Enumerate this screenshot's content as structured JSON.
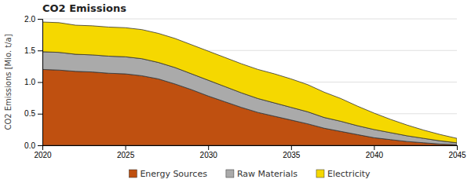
{
  "chart_data": {
    "type": "area",
    "stacked": true,
    "title": "CO2 Emissions",
    "ylabel": "CO2 Emissions [Mio. t/a]",
    "x": [
      2020,
      2021,
      2022,
      2023,
      2024,
      2025,
      2026,
      2027,
      2028,
      2029,
      2030,
      2031,
      2032,
      2033,
      2034,
      2035,
      2036,
      2037,
      2038,
      2039,
      2040,
      2041,
      2042,
      2043,
      2044,
      2045
    ],
    "series": [
      {
        "name": "Energy Sources",
        "color": "#bf5010",
        "values": [
          1.2,
          1.19,
          1.17,
          1.16,
          1.14,
          1.13,
          1.1,
          1.05,
          0.97,
          0.88,
          0.78,
          0.69,
          0.6,
          0.52,
          0.46,
          0.4,
          0.34,
          0.27,
          0.22,
          0.17,
          0.12,
          0.09,
          0.06,
          0.04,
          0.02,
          0.01
        ]
      },
      {
        "name": "Raw Materials",
        "color": "#aaaaaa",
        "values": [
          0.28,
          0.28,
          0.27,
          0.27,
          0.27,
          0.27,
          0.27,
          0.26,
          0.26,
          0.25,
          0.25,
          0.24,
          0.23,
          0.22,
          0.21,
          0.2,
          0.19,
          0.17,
          0.16,
          0.14,
          0.13,
          0.11,
          0.09,
          0.07,
          0.05,
          0.03
        ]
      },
      {
        "name": "Electricity",
        "color": "#f5d800",
        "values": [
          0.47,
          0.47,
          0.46,
          0.46,
          0.46,
          0.46,
          0.46,
          0.46,
          0.46,
          0.46,
          0.46,
          0.46,
          0.46,
          0.46,
          0.46,
          0.45,
          0.43,
          0.4,
          0.36,
          0.31,
          0.26,
          0.21,
          0.17,
          0.13,
          0.1,
          0.07
        ]
      }
    ],
    "xlim": [
      2020,
      2045
    ],
    "xticks": [
      2020,
      2025,
      2030,
      2035,
      2040,
      2045
    ],
    "ylim": [
      0,
      2.0
    ],
    "yticks": [
      {
        "value": 0,
        "label": "0.0"
      },
      0.5,
      {
        "value": 1.0,
        "label": "1.0"
      },
      1.5,
      {
        "value": 2.0,
        "label": "2.0"
      }
    ],
    "grid": true,
    "legend": "bottom"
  }
}
